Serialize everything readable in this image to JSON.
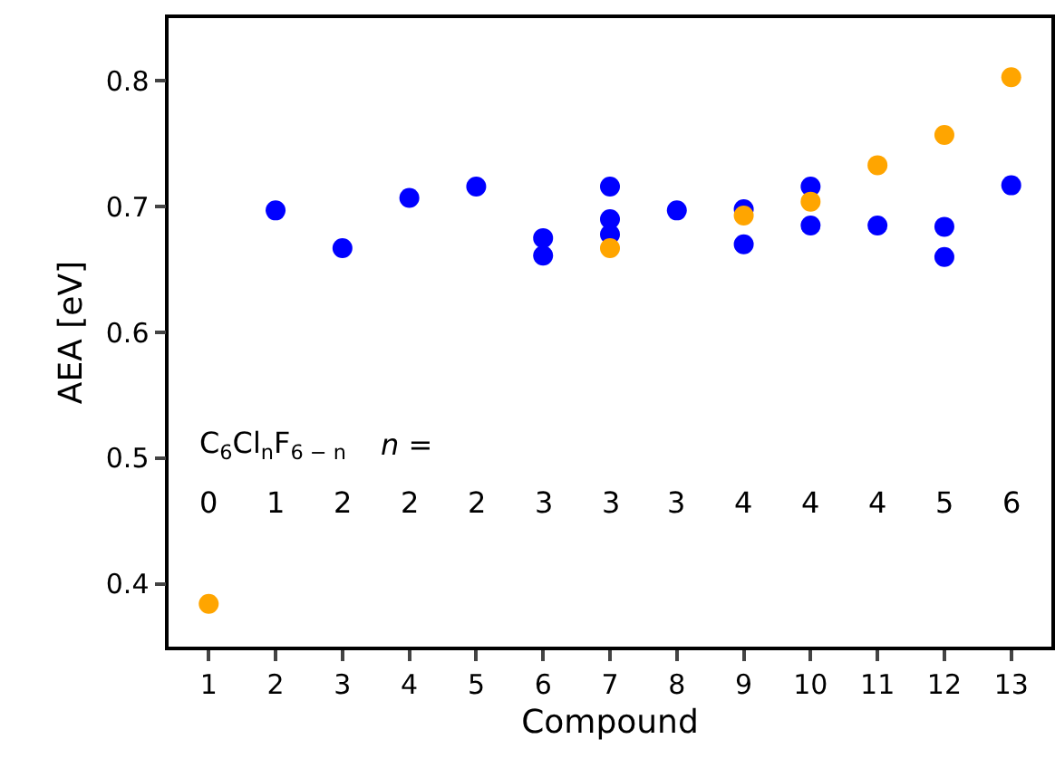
{
  "chart_data": {
    "type": "scatter",
    "xlabel": "Compound",
    "ylabel": "AEA [eV]",
    "xlim": [
      0.4,
      13.6
    ],
    "xticks": [
      1,
      2,
      3,
      4,
      5,
      6,
      7,
      8,
      9,
      10,
      11,
      12,
      13
    ],
    "ylim": [
      0.35,
      0.85
    ],
    "yticks": [
      0.4,
      0.5,
      0.6,
      0.7,
      0.8
    ],
    "grid": false,
    "marker": "circle",
    "series": [
      {
        "color": "#0000ff",
        "x": [
          2,
          3,
          4,
          5,
          6,
          6,
          7,
          7,
          7,
          8,
          9,
          9,
          10,
          10,
          11,
          12,
          12,
          13
        ],
        "values": [
          0.697,
          0.667,
          0.707,
          0.716,
          0.675,
          0.661,
          0.716,
          0.69,
          0.678,
          0.697,
          0.698,
          0.67,
          0.716,
          0.685,
          0.685,
          0.684,
          0.66,
          0.717
        ]
      },
      {
        "color": "#ffa500",
        "x": [
          1,
          7,
          9,
          10,
          11,
          12,
          13
        ],
        "values": [
          0.384,
          0.667,
          0.693,
          0.704,
          0.733,
          0.757,
          0.803
        ]
      }
    ],
    "annotations": [
      "C$_{6}$Cl$_{n}$F$_{6 − n}$",
      "n =",
      "0",
      "1",
      "2",
      "2",
      "2",
      "3",
      "3",
      "3",
      "4",
      "4",
      "4",
      "5",
      "6"
    ]
  }
}
